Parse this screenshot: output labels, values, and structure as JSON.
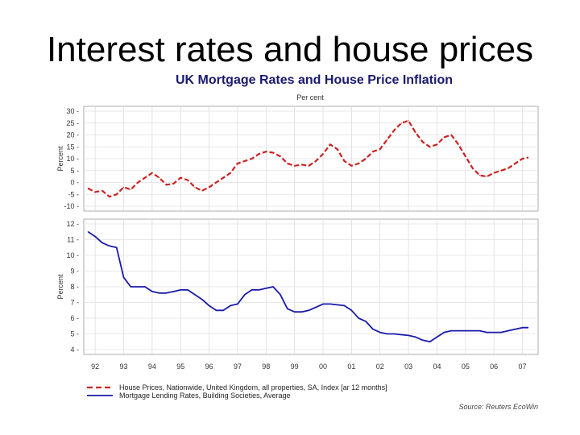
{
  "slide": {
    "title": "Interest rates and house prices"
  },
  "chart_data": {
    "type": "line",
    "title": "UK Mortgage Rates and House Price Inflation",
    "subtitle": "Per cent",
    "x_ticks": [
      "92",
      "93",
      "94",
      "95",
      "96",
      "97",
      "98",
      "99",
      "00",
      "01",
      "02",
      "03",
      "04",
      "05",
      "06",
      "07"
    ],
    "legend_placement": "bottom",
    "grid": true,
    "source": "Source: Reuters EcoWin",
    "panels": [
      {
        "ylabel": "Percent",
        "ylim": [
          -10,
          30
        ],
        "yticks": [
          30,
          25,
          20,
          15,
          10,
          5,
          0,
          -5,
          -10
        ],
        "series": [
          {
            "name": "House Prices, Nationwide, United Kingdom, all properties, SA, Index [ar 12 months]",
            "color": "#cc2222",
            "dashed": true,
            "x": [
              1991.75,
              1992.0,
              1992.25,
              1992.5,
              1992.75,
              1993.0,
              1993.25,
              1993.5,
              1993.75,
              1994.0,
              1994.25,
              1994.5,
              1994.75,
              1995.0,
              1995.25,
              1995.5,
              1995.75,
              1996.0,
              1996.25,
              1996.5,
              1996.75,
              1997.0,
              1997.25,
              1997.5,
              1997.75,
              1998.0,
              1998.25,
              1998.5,
              1998.75,
              1999.0,
              1999.25,
              1999.5,
              1999.75,
              2000.0,
              2000.25,
              2000.5,
              2000.75,
              2001.0,
              2001.25,
              2001.5,
              2001.75,
              2002.0,
              2002.25,
              2002.5,
              2002.75,
              2003.0,
              2003.25,
              2003.5,
              2003.75,
              2004.0,
              2004.25,
              2004.5,
              2004.75,
              2005.0,
              2005.25,
              2005.5,
              2005.75,
              2006.0,
              2006.25,
              2006.5,
              2006.75,
              2007.0,
              2007.2
            ],
            "values": [
              -2.5,
              -4,
              -3.5,
              -6,
              -5,
              -2,
              -3,
              0,
              2,
              4,
              2,
              -1,
              -0.5,
              2,
              1,
              -2,
              -3.5,
              -2,
              0,
              2,
              4,
              8,
              9,
              10,
              12,
              13,
              12.5,
              11,
              8,
              7,
              7.5,
              7,
              9,
              12,
              16,
              14,
              9,
              7,
              8,
              10,
              13,
              14,
              18,
              22,
              25,
              26,
              21,
              17,
              15,
              16,
              19,
              20,
              16,
              11,
              6,
              3,
              2.5,
              4,
              5,
              6,
              8,
              10,
              10.5
            ]
          }
        ]
      },
      {
        "ylabel": "Percent",
        "ylim": [
          4,
          12
        ],
        "yticks": [
          12,
          11,
          10,
          9,
          8,
          7,
          6,
          5,
          4
        ],
        "series": [
          {
            "name": "Mortgage Lending Rates, Building Societies, Average",
            "color": "#1a1aaa",
            "dashed": false,
            "x": [
              1991.75,
              1992.0,
              1992.25,
              1992.5,
              1992.75,
              1993.0,
              1993.25,
              1993.5,
              1993.75,
              1994.0,
              1994.25,
              1994.5,
              1994.75,
              1995.0,
              1995.25,
              1995.5,
              1995.75,
              1996.0,
              1996.25,
              1996.5,
              1996.75,
              1997.0,
              1997.25,
              1997.5,
              1997.75,
              1998.0,
              1998.25,
              1998.5,
              1998.75,
              1999.0,
              1999.25,
              1999.5,
              1999.75,
              2000.0,
              2000.25,
              2000.5,
              2000.75,
              2001.0,
              2001.25,
              2001.5,
              2001.75,
              2002.0,
              2002.25,
              2002.5,
              2002.75,
              2003.0,
              2003.25,
              2003.5,
              2003.75,
              2004.0,
              2004.25,
              2004.5,
              2004.75,
              2005.0,
              2005.25,
              2005.5,
              2005.75,
              2006.0,
              2006.25,
              2006.5,
              2006.75,
              2007.0,
              2007.2
            ],
            "values": [
              11.5,
              11.2,
              10.8,
              10.6,
              10.5,
              8.6,
              8.0,
              8.0,
              8.0,
              7.7,
              7.6,
              7.6,
              7.7,
              7.8,
              7.8,
              7.5,
              7.2,
              6.8,
              6.5,
              6.5,
              6.8,
              6.9,
              7.5,
              7.8,
              7.8,
              7.9,
              8.0,
              7.5,
              6.6,
              6.4,
              6.4,
              6.5,
              6.7,
              6.9,
              6.9,
              6.85,
              6.8,
              6.5,
              6.0,
              5.8,
              5.3,
              5.1,
              5.0,
              5.0,
              4.95,
              4.9,
              4.8,
              4.6,
              4.5,
              4.8,
              5.1,
              5.2,
              5.2,
              5.2,
              5.2,
              5.2,
              5.1,
              5.1,
              5.1,
              5.2,
              5.3,
              5.4,
              5.4
            ]
          }
        ]
      }
    ]
  }
}
